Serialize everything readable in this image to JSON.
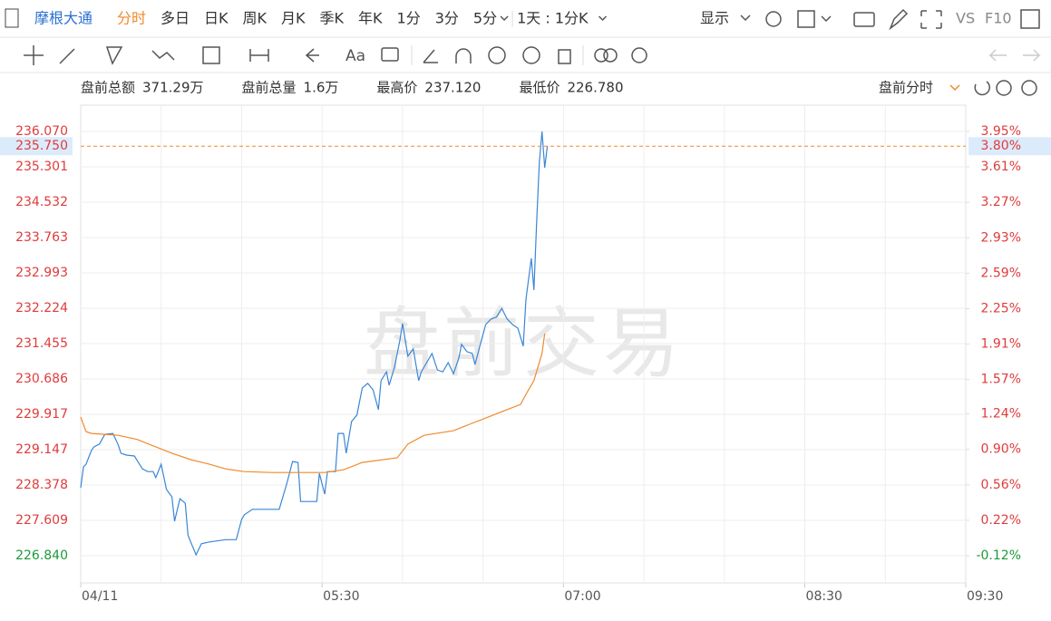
{
  "toolbar": {
    "symbol": "摩根大通",
    "periods": [
      "分时",
      "多日",
      "日K",
      "周K",
      "月K",
      "季K",
      "年K",
      "1分",
      "3分",
      "5分",
      "1天 : 1分K"
    ],
    "display": "显示",
    "vs": "VS",
    "f10": "F10"
  },
  "info": {
    "items": [
      {
        "label": "盘前总额",
        "value": "371.29万"
      },
      {
        "label": "盘前总量",
        "value": "1.6万"
      },
      {
        "label": "最高价",
        "value": "237.120"
      },
      {
        "label": "最低价",
        "value": "226.780"
      }
    ],
    "mode": "盘前分时"
  },
  "chart_data": {
    "type": "line",
    "watermark": "盘前交易",
    "xlim": [
      "04:00",
      "09:30"
    ],
    "xticks": [
      {
        "value": "04:00",
        "label": "04/11"
      },
      "05:30",
      "07:00",
      "08:30",
      "09:30"
    ],
    "x_grid_minutes": 30,
    "ylim": [
      226.84,
      236.07
    ],
    "yticks": [
      {
        "value": 236.07,
        "label": "236.070"
      },
      {
        "value": 235.301,
        "label": "235.301"
      },
      {
        "value": 234.532,
        "label": "234.532"
      },
      {
        "value": 233.763,
        "label": "233.763"
      },
      {
        "value": 232.993,
        "label": "232.993"
      },
      {
        "value": 232.224,
        "label": "232.224"
      },
      {
        "value": 231.455,
        "label": "231.455"
      },
      {
        "value": 230.686,
        "label": "230.686"
      },
      {
        "value": 229.917,
        "label": "229.917"
      },
      {
        "value": 229.147,
        "label": "229.147"
      },
      {
        "value": 228.378,
        "label": "228.378"
      },
      {
        "value": 227.609,
        "label": "227.609"
      },
      {
        "value": 226.84,
        "label": "226.840"
      }
    ],
    "y2lim": [
      -0.12,
      3.95
    ],
    "y2ticks": [
      {
        "value": 3.95,
        "label": "3.95%"
      },
      {
        "value": 3.61,
        "label": "3.61%"
      },
      {
        "value": 3.27,
        "label": "3.27%"
      },
      {
        "value": 2.93,
        "label": "2.93%"
      },
      {
        "value": 2.59,
        "label": "2.59%"
      },
      {
        "value": 2.25,
        "label": "2.25%"
      },
      {
        "value": 1.91,
        "label": "1.91%"
      },
      {
        "value": 1.57,
        "label": "1.57%"
      },
      {
        "value": 1.24,
        "label": "1.24%"
      },
      {
        "value": 0.9,
        "label": "0.90%"
      },
      {
        "value": 0.56,
        "label": "0.56%"
      },
      {
        "value": 0.22,
        "label": "0.22%"
      },
      {
        "value": -0.12,
        "label": "-0.12%"
      }
    ],
    "grid": true,
    "last": {
      "value": 235.75,
      "label": "235.750",
      "pct": {
        "value": 3.8,
        "label": "3.80%"
      },
      "color": "#f08a2c"
    },
    "series": [
      {
        "color": "#3a86d6",
        "x": [
          "04:00",
          "04:01",
          "04:02",
          "04:04",
          "04:05",
          "04:07",
          "04:09",
          "04:12",
          "04:14",
          "04:15",
          "04:17",
          "04:20",
          "04:23",
          "04:25",
          "04:27",
          "04:28",
          "04:30",
          "04:32",
          "04:34",
          "04:35",
          "04:37",
          "04:39",
          "04:40",
          "04:41",
          "04:43",
          "04:45",
          "04:48",
          "04:54",
          "04:58",
          "05:00",
          "05:01",
          "05:04",
          "05:14",
          "05:17",
          "05:19",
          "05:21",
          "05:22",
          "05:28",
          "05:29",
          "05:31",
          "05:32",
          "05:35",
          "05:36",
          "05:38",
          "05:39",
          "05:41",
          "05:43",
          "05:45",
          "05:47",
          "05:49",
          "05:51",
          "05:52",
          "05:54",
          "05:55",
          "05:57",
          "05:59",
          "06:00",
          "06:02",
          "06:04",
          "06:06",
          "06:07",
          "06:09",
          "06:11",
          "06:13",
          "06:15",
          "06:17",
          "06:19",
          "06:21",
          "06:22",
          "06:24",
          "06:26",
          "06:27",
          "06:29",
          "06:31",
          "06:33",
          "06:35",
          "06:37",
          "06:39",
          "06:41",
          "06:43",
          "06:45",
          "06:46",
          "06:48",
          "06:49",
          "06:50",
          "06:51",
          "06:52",
          "06:53",
          "06:54"
        ],
        "values": [
          228.32,
          228.77,
          228.83,
          229.13,
          229.21,
          229.27,
          229.48,
          229.5,
          229.25,
          229.07,
          229.03,
          229.01,
          228.73,
          228.67,
          228.67,
          228.54,
          228.83,
          228.28,
          228.12,
          227.59,
          228.08,
          227.98,
          227.29,
          227.14,
          226.86,
          227.1,
          227.14,
          227.19,
          227.19,
          227.63,
          227.73,
          227.85,
          227.85,
          228.44,
          228.89,
          228.87,
          228.02,
          228.02,
          228.63,
          228.18,
          228.67,
          228.67,
          229.5,
          229.5,
          229.07,
          229.76,
          229.9,
          230.49,
          230.59,
          230.45,
          230.02,
          230.65,
          230.84,
          230.55,
          230.94,
          231.53,
          231.89,
          231.18,
          231.34,
          230.65,
          230.84,
          231.04,
          231.24,
          230.88,
          230.84,
          231.04,
          230.8,
          231.14,
          231.44,
          231.28,
          231.24,
          231.0,
          231.44,
          231.87,
          231.99,
          232.03,
          232.22,
          231.99,
          231.87,
          231.79,
          231.4,
          232.42,
          233.31,
          232.62,
          234.1,
          235.38,
          236.07,
          235.28,
          235.75
        ]
      },
      {
        "color": "#f08a2c",
        "x": [
          "04:00",
          "04:02",
          "04:04",
          "04:14",
          "04:21",
          "04:27",
          "04:34",
          "04:41",
          "04:48",
          "04:54",
          "05:01",
          "05:11",
          "05:31",
          "05:38",
          "05:45",
          "05:58",
          "06:02",
          "06:08",
          "06:19",
          "06:25",
          "06:32",
          "06:39",
          "06:44",
          "06:46",
          "06:49",
          "06:52",
          "06:53"
        ],
        "values": [
          229.86,
          229.54,
          229.5,
          229.46,
          229.37,
          229.23,
          229.07,
          228.93,
          228.83,
          228.73,
          228.67,
          228.65,
          228.65,
          228.71,
          228.87,
          228.97,
          229.27,
          229.46,
          229.56,
          229.7,
          229.86,
          230.02,
          230.13,
          230.35,
          230.65,
          231.24,
          231.67
        ]
      }
    ]
  }
}
